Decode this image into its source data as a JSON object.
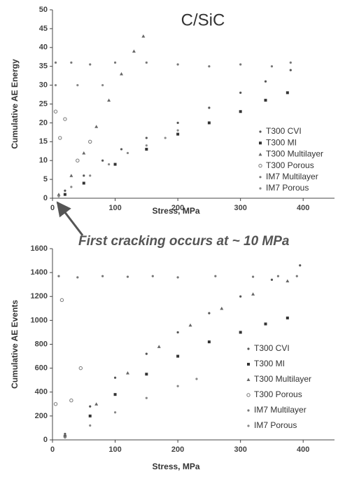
{
  "chart_data": [
    {
      "type": "scatter",
      "title": "C/SiC",
      "xlabel": "Stress, MPa",
      "ylabel": "Cumulative AE Energy",
      "annotation": "First cracking occurs at ~ 10 MPa",
      "xlim": [
        0,
        450
      ],
      "xticks": [
        0,
        100,
        200,
        300,
        400
      ],
      "ylim": [
        0,
        50
      ],
      "yticks": [
        0,
        5,
        10,
        15,
        20,
        25,
        30,
        35,
        40,
        45,
        50
      ],
      "series": [
        {
          "name": "T300 CVI",
          "color": "#555555",
          "marker": "dot",
          "x": [
            20,
            50,
            80,
            110,
            150,
            200,
            250,
            300,
            340,
            380
          ],
          "values": [
            2,
            6,
            10,
            13,
            16,
            20,
            24,
            28,
            31,
            34
          ]
        },
        {
          "name": "T300 MI",
          "color": "#333333",
          "marker": "square",
          "x": [
            20,
            50,
            100,
            150,
            200,
            250,
            300,
            340,
            375
          ],
          "values": [
            1,
            4,
            9,
            13,
            17,
            20,
            23,
            26,
            28
          ]
        },
        {
          "name": "T300 Multilayer",
          "color": "#666666",
          "marker": "triangle",
          "x": [
            10,
            30,
            50,
            70,
            90,
            110,
            130,
            145
          ],
          "values": [
            1,
            6,
            12,
            19,
            26,
            33,
            39,
            43
          ]
        },
        {
          "name": "T300 Porous",
          "color": "#777777",
          "marker": "circle",
          "x": [
            5,
            12,
            20,
            40,
            60
          ],
          "values": [
            23,
            16,
            21,
            10,
            15
          ]
        },
        {
          "name": "IM7 Multilayer",
          "color": "#777777",
          "marker": "dot",
          "x": [
            5,
            30,
            60,
            100,
            150,
            200,
            250,
            300,
            350,
            380
          ],
          "values": [
            36,
            36,
            35.5,
            36,
            36,
            35.5,
            35,
            35.5,
            35,
            36
          ]
        },
        {
          "name": "IM7 Porous",
          "color": "#888888",
          "marker": "dot",
          "x": [
            10,
            30,
            60,
            90,
            120,
            150,
            180,
            200,
            5,
            40,
            80
          ],
          "values": [
            0.5,
            3,
            6,
            9,
            12,
            14,
            16,
            18,
            30,
            30,
            30
          ]
        }
      ]
    },
    {
      "type": "scatter",
      "xlabel": "Stress, MPa",
      "ylabel": "Cumulative AE Events",
      "xlim": [
        0,
        450
      ],
      "xticks": [
        0,
        100,
        200,
        300,
        400
      ],
      "ylim": [
        0,
        1600
      ],
      "yticks": [
        0,
        200,
        400,
        600,
        800,
        1000,
        1200,
        1400,
        1600
      ],
      "series": [
        {
          "name": "T300 CVI",
          "color": "#555555",
          "marker": "dot",
          "x": [
            20,
            60,
            100,
            150,
            200,
            250,
            300,
            350,
            395
          ],
          "values": [
            50,
            280,
            520,
            720,
            900,
            1060,
            1200,
            1340,
            1460
          ]
        },
        {
          "name": "T300 MI",
          "color": "#333333",
          "marker": "square",
          "x": [
            20,
            60,
            100,
            150,
            200,
            250,
            300,
            340,
            375
          ],
          "values": [
            30,
            200,
            380,
            550,
            700,
            820,
            900,
            970,
            1020
          ]
        },
        {
          "name": "T300 Multilayer",
          "color": "#666666",
          "marker": "triangle",
          "x": [
            20,
            70,
            120,
            170,
            220,
            270,
            320,
            375
          ],
          "values": [
            40,
            300,
            560,
            780,
            960,
            1100,
            1220,
            1330
          ]
        },
        {
          "name": "T300 Porous",
          "color": "#777777",
          "marker": "circle",
          "x": [
            5,
            15,
            30,
            45
          ],
          "values": [
            300,
            1170,
            330,
            600
          ]
        },
        {
          "name": "IM7 Multilayer",
          "color": "#777777",
          "marker": "dot",
          "x": [
            10,
            40,
            80,
            120,
            160,
            200,
            260,
            320,
            360,
            390
          ],
          "values": [
            1370,
            1360,
            1370,
            1365,
            1370,
            1360,
            1370,
            1365,
            1370,
            1370
          ]
        },
        {
          "name": "IM7 Porous",
          "color": "#888888",
          "marker": "dot",
          "x": [
            20,
            60,
            100,
            150,
            200,
            230
          ],
          "values": [
            20,
            120,
            230,
            350,
            450,
            510
          ]
        }
      ]
    }
  ]
}
